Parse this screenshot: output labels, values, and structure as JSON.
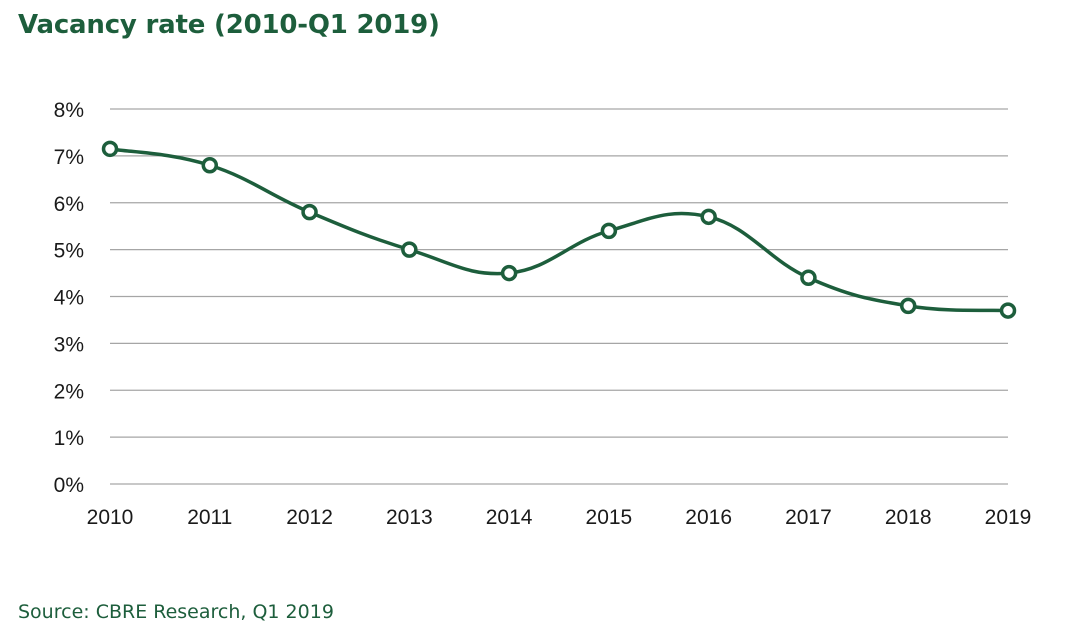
{
  "title": "Vacancy rate (2010-Q1 2019)",
  "source": "Source: CBRE Research, Q1 2019",
  "colors": {
    "series": "#1d5e3c",
    "title": "#1d5e3c",
    "grid": "#a6a6a6"
  },
  "chart_data": {
    "type": "line",
    "title": "Vacancy rate (2010-Q1 2019)",
    "xlabel": "",
    "ylabel": "",
    "categories": [
      "2010",
      "2011",
      "2012",
      "2013",
      "2014",
      "2015",
      "2016",
      "2017",
      "2018",
      "2019"
    ],
    "series": [
      {
        "name": "Vacancy rate",
        "values": [
          7.15,
          6.8,
          5.8,
          5.0,
          4.5,
          5.4,
          5.7,
          4.4,
          3.8,
          3.7
        ]
      }
    ],
    "y_ticks": [
      0,
      1,
      2,
      3,
      4,
      5,
      6,
      7,
      8
    ],
    "y_tick_labels": [
      "0%",
      "1%",
      "2%",
      "3%",
      "4%",
      "5%",
      "6%",
      "7%",
      "8%"
    ],
    "ylim": [
      0,
      8
    ],
    "grid": true,
    "smooth": true,
    "legend": "none"
  }
}
